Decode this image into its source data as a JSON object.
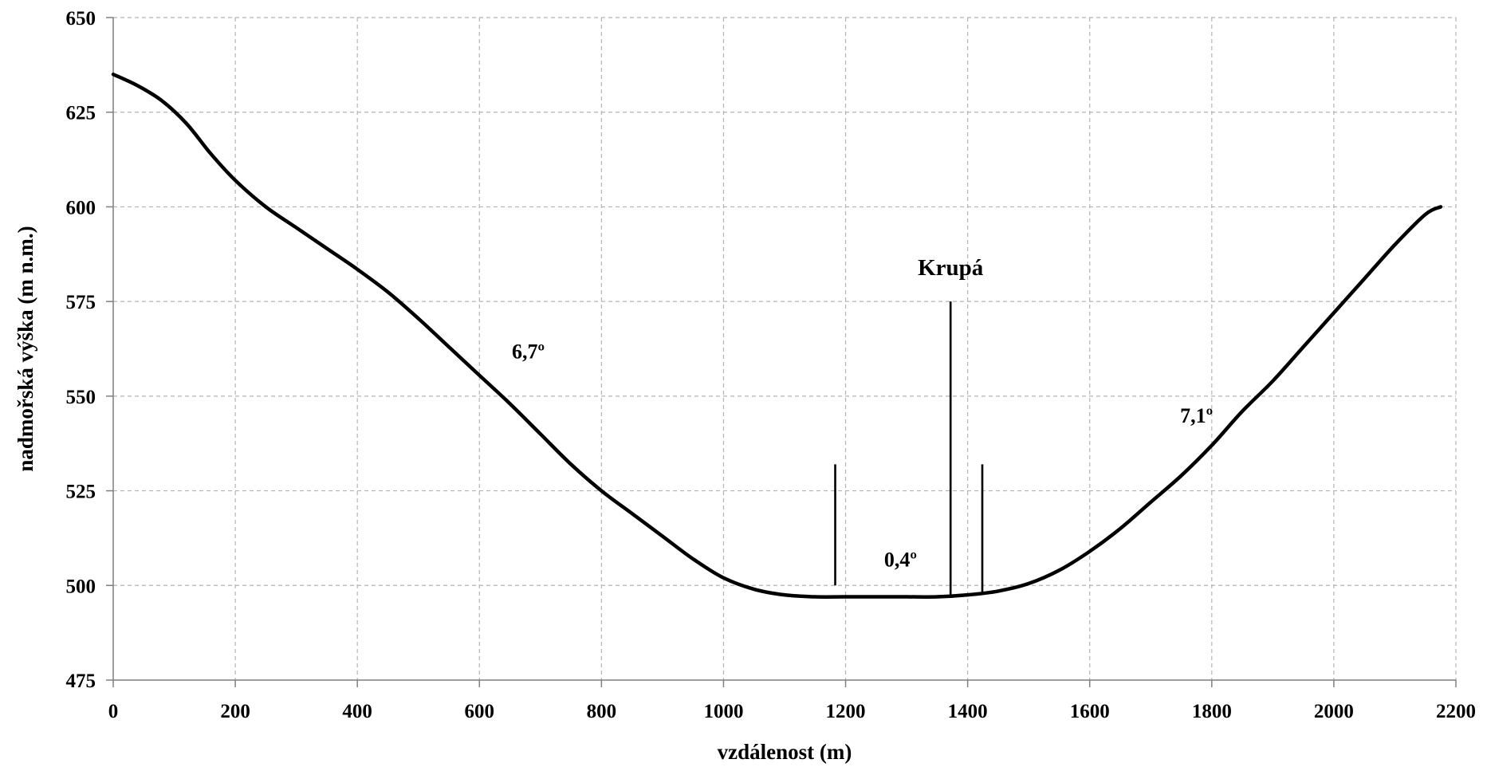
{
  "chart_data": {
    "type": "line",
    "xlabel": "vzdálenost (m)",
    "ylabel": "nadmořská výška (m n.m.)",
    "xlim": [
      0,
      2200
    ],
    "ylim": [
      475,
      650
    ],
    "x_ticks": [
      0,
      200,
      400,
      600,
      800,
      1000,
      1200,
      1400,
      1600,
      1800,
      2000,
      2200
    ],
    "y_ticks": [
      475,
      500,
      525,
      550,
      575,
      600,
      625,
      650
    ],
    "grid": true,
    "series": [
      {
        "x": [
          0,
          40,
          80,
          120,
          160,
          200,
          250,
          300,
          350,
          400,
          450,
          500,
          550,
          600,
          650,
          700,
          750,
          800,
          850,
          900,
          950,
          1000,
          1050,
          1100,
          1150,
          1200,
          1250,
          1300,
          1350,
          1400,
          1450,
          1500,
          1550,
          1600,
          1650,
          1700,
          1750,
          1800,
          1850,
          1900,
          1950,
          2000,
          2050,
          2100,
          2150,
          2175
        ],
        "y": [
          635,
          632,
          628,
          622,
          614,
          607,
          600,
          594.5,
          589,
          583.5,
          577.5,
          570.5,
          563,
          555.5,
          548,
          540,
          532,
          525,
          519,
          513,
          507,
          502,
          499,
          497.5,
          497,
          497,
          497,
          497,
          497,
          497.5,
          498.5,
          500.5,
          504,
          509,
          515,
          522,
          529,
          537,
          546,
          554,
          563,
          572,
          581,
          590,
          598,
          600
        ]
      }
    ],
    "markers": [
      {
        "x": 1183,
        "y_top": 532,
        "y_bottom": 500
      },
      {
        "x": 1372,
        "y_top": 575,
        "y_bottom": 497
      },
      {
        "x": 1424,
        "y_top": 532,
        "y_bottom": 498
      }
    ],
    "annotations": [
      {
        "text": "6,7º",
        "x": 680,
        "y": 560
      },
      {
        "text": "Krupá",
        "x": 1372,
        "y": 582
      },
      {
        "text": "0,4º",
        "x": 1290,
        "y": 505
      },
      {
        "text": "7,1º",
        "x": 1775,
        "y": 543
      }
    ]
  }
}
